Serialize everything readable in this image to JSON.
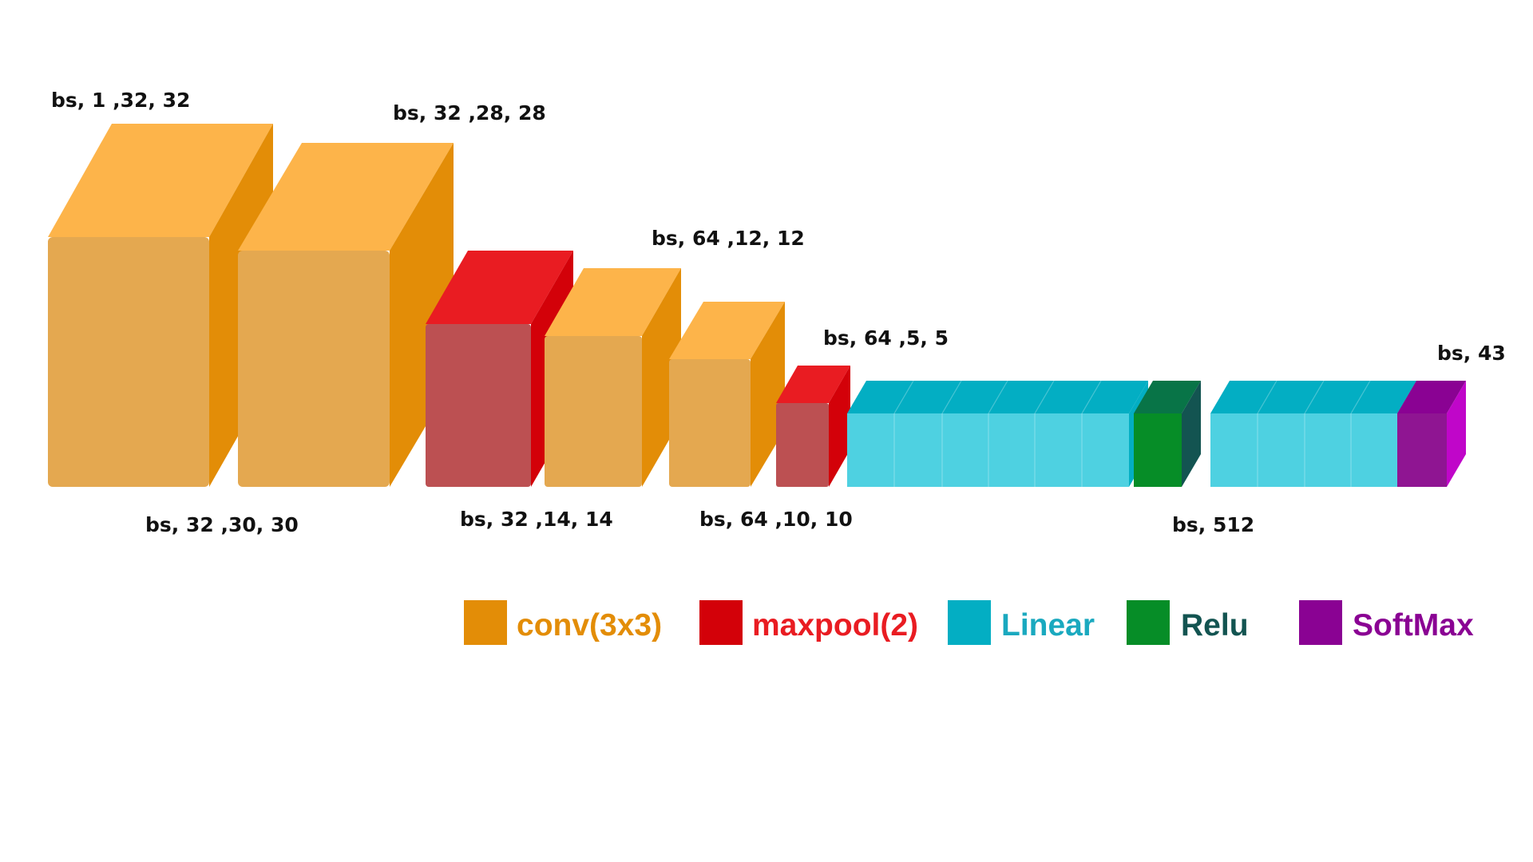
{
  "palette": {
    "conv": {
      "front": "#E4A850",
      "top": "#FDB44A",
      "side": "#E38D07"
    },
    "maxpool": {
      "front": "#BC5052",
      "top": "#E91C22",
      "side": "#D30109"
    },
    "linear": {
      "front": "#4ED1E1",
      "top": "#03AEC3",
      "side": "#03AEC3"
    },
    "relu": {
      "front": "#068D27",
      "top": "#087447",
      "side": "#135451"
    },
    "softmax": {
      "front": "#8F1592",
      "top": "#8A0293",
      "side": "#C006C9"
    }
  },
  "blocks": [
    {
      "kind": "conv"
    },
    {
      "kind": "conv"
    },
    {
      "kind": "maxpool"
    },
    {
      "kind": "conv"
    },
    {
      "kind": "conv"
    },
    {
      "kind": "maxpool"
    },
    {
      "kind": "linear"
    },
    {
      "kind": "relu"
    },
    {
      "kind": "linear"
    },
    {
      "kind": "softmax"
    }
  ],
  "labels": {
    "input": "bs, 1 ,32, 32",
    "conv1": "bs, 32 ,30, 30",
    "conv2": "bs, 32 ,28, 28",
    "pool1": "bs, 32 ,14, 14",
    "conv3": "bs, 64 ,12, 12",
    "conv4": "bs, 64 ,10, 10",
    "pool2": "bs, 64 ,5, 5",
    "hidden": "bs, 512",
    "output": "bs, 43"
  },
  "legend": [
    {
      "label": "conv(3x3)",
      "swatch": "#E38D07",
      "text_color": "#E38D07"
    },
    {
      "label": "maxpool(2)",
      "swatch": "#D30109",
      "text_color": "#E91C22"
    },
    {
      "label": "Linear",
      "swatch": "#03AEC3",
      "text_color": "#1AA9BF"
    },
    {
      "label": "Relu",
      "swatch": "#068D27",
      "text_color": "#135451"
    },
    {
      "label": "SoftMax",
      "swatch": "#8A0293",
      "text_color": "#8A0293"
    }
  ]
}
